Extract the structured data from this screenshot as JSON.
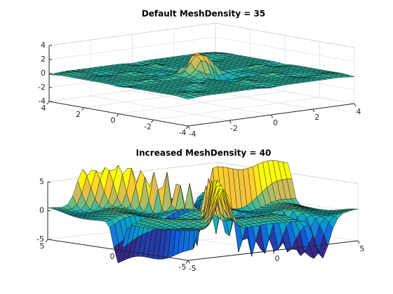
{
  "chart_data": [
    {
      "type": "surface3d",
      "title": "Default MeshDensity = 35",
      "xlim": [
        -4,
        4
      ],
      "ylim": [
        -4,
        4
      ],
      "zlim": [
        -4,
        4
      ],
      "xticks": [
        -4,
        -2,
        0,
        2,
        4
      ],
      "yticks": [
        -4,
        -2,
        0,
        2,
        4
      ],
      "zticks": [
        -4,
        -2,
        0,
        2,
        4
      ],
      "grid": true
    },
    {
      "type": "surface3d",
      "title": "Increased MeshDensity = 40",
      "xlim": [
        -5,
        5
      ],
      "ylim": [
        -5,
        5
      ],
      "zlim": [
        -5,
        5
      ],
      "xticks": [
        -5,
        0,
        5
      ],
      "yticks": [
        -5,
        0,
        5
      ],
      "zticks": [
        -5,
        0,
        5
      ],
      "grid": true
    }
  ]
}
